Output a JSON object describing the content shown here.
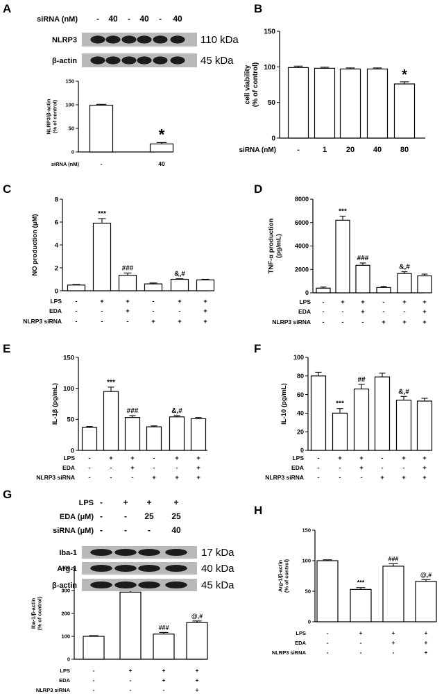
{
  "panels": [
    {
      "id": "A",
      "letter": "A",
      "type": "western_blot",
      "blot": {
        "cond_label": "siRNA (nM)",
        "cond_values": [
          "-",
          "40",
          "-",
          "40",
          "-",
          "40"
        ],
        "bands": [
          {
            "label": "NLRP3",
            "size": "110 kDa"
          },
          {
            "label": "β-actin",
            "size": "45 kDa"
          }
        ]
      },
      "chart_data": {
        "type": "bar",
        "categories": [
          "-",
          "40"
        ],
        "values": [
          99,
          17
        ],
        "errors": [
          2,
          3
        ],
        "ylabel": [
          "NLRP3/β-actin",
          "(% of control)"
        ],
        "ylim": [
          0,
          150
        ],
        "yticks": [
          "0",
          "50",
          "100",
          "150"
        ],
        "annotations": [
          "",
          "*"
        ],
        "condition_rows": [
          {
            "label": "siRNA (nM)",
            "values": [
              "-",
              "40"
            ]
          }
        ]
      }
    },
    {
      "id": "B",
      "letter": "B",
      "type": "bar",
      "chart_data": {
        "type": "bar",
        "categories": [
          "-",
          "1",
          "20",
          "40",
          "80"
        ],
        "values": [
          99,
          98,
          97,
          97,
          76
        ],
        "errors": [
          2,
          1.5,
          1.5,
          1.5,
          3
        ],
        "ylabel": [
          "cell viability",
          "(% of control)"
        ],
        "ylim": [
          0,
          150
        ],
        "yticks": [
          "0",
          "50",
          "100",
          "150"
        ],
        "annotations": [
          "",
          "",
          "",
          "",
          "*"
        ],
        "condition_rows": [
          {
            "label": "siRNA (nM)",
            "values": [
              "-",
              "1",
              "20",
              "40",
              "80"
            ]
          }
        ]
      }
    },
    {
      "id": "C",
      "letter": "C",
      "type": "bar",
      "chart_data": {
        "type": "bar",
        "categories": [
          "1",
          "2",
          "3",
          "4",
          "5",
          "6"
        ],
        "values": [
          0.5,
          5.9,
          1.35,
          0.6,
          1.0,
          0.95
        ],
        "errors": [
          0.05,
          0.4,
          0.2,
          0.08,
          0.05,
          0.05
        ],
        "ylabel": [
          "NO production (μM)"
        ],
        "ylim": [
          0,
          8
        ],
        "yticks": [
          "0",
          "2",
          "4",
          "6",
          "8"
        ],
        "annotations": [
          "",
          "***",
          "###",
          "",
          "&,#",
          ""
        ],
        "condition_rows": [
          {
            "label": "LPS",
            "values": [
              "-",
              "+",
              "+",
              "-",
              "+",
              "+"
            ]
          },
          {
            "label": "EDA",
            "values": [
              "-",
              "-",
              "+",
              "-",
              "-",
              "+"
            ]
          },
          {
            "label": "NLRP3 siRNA",
            "values": [
              "-",
              "-",
              "-",
              "+",
              "+",
              "+"
            ]
          }
        ]
      }
    },
    {
      "id": "D",
      "letter": "D",
      "type": "bar",
      "chart_data": {
        "type": "bar",
        "categories": [
          "1",
          "2",
          "3",
          "4",
          "5",
          "6"
        ],
        "values": [
          400,
          6200,
          2350,
          450,
          1650,
          1450
        ],
        "errors": [
          100,
          350,
          200,
          100,
          150,
          150
        ],
        "ylabel": [
          "TNF-α production",
          "(pg/mL)"
        ],
        "ylim": [
          0,
          8000
        ],
        "yticks": [
          "0",
          "2000",
          "4000",
          "6000",
          "8000"
        ],
        "annotations": [
          "",
          "***",
          "###",
          "",
          "&,#",
          ""
        ],
        "condition_rows": [
          {
            "label": "LPS",
            "values": [
              "-",
              "+",
              "+",
              "-",
              "+",
              "+"
            ]
          },
          {
            "label": "EDA",
            "values": [
              "-",
              "-",
              "+",
              "-",
              "-",
              "+"
            ]
          },
          {
            "label": "NLRP3 siRNA",
            "values": [
              "-",
              "-",
              "-",
              "+",
              "+",
              "+"
            ]
          }
        ]
      }
    },
    {
      "id": "E",
      "letter": "E",
      "type": "bar",
      "chart_data": {
        "type": "bar",
        "categories": [
          "1",
          "2",
          "3",
          "4",
          "5",
          "6"
        ],
        "values": [
          37,
          95,
          53,
          38,
          54,
          51
        ],
        "errors": [
          1.5,
          7,
          3,
          1.5,
          2,
          2
        ],
        "ylabel": [
          "IL-1β (pg/mL)"
        ],
        "ylim": [
          0,
          150
        ],
        "yticks": [
          "0",
          "50",
          "100",
          "150"
        ],
        "annotations": [
          "",
          "***",
          "###",
          "",
          "&,#",
          ""
        ],
        "condition_rows": [
          {
            "label": "LPS",
            "values": [
              "-",
              "+",
              "+",
              "-",
              "+",
              "+"
            ]
          },
          {
            "label": "EDA",
            "values": [
              "-",
              "-",
              "+",
              "-",
              "-",
              "+"
            ]
          },
          {
            "label": "NLRP3 siRNA",
            "values": [
              "-",
              "-",
              "-",
              "+",
              "+",
              "+"
            ]
          }
        ]
      }
    },
    {
      "id": "F",
      "letter": "F",
      "type": "bar",
      "chart_data": {
        "type": "bar",
        "categories": [
          "1",
          "2",
          "3",
          "4",
          "5",
          "6"
        ],
        "values": [
          80,
          40,
          66,
          79,
          54,
          53
        ],
        "errors": [
          4,
          5,
          5,
          4,
          4,
          3
        ],
        "ylabel": [
          "IL-10 (pg/mL)"
        ],
        "ylim": [
          0,
          100
        ],
        "yticks": [
          "0",
          "20",
          "40",
          "60",
          "80",
          "100"
        ],
        "annotations": [
          "",
          "***",
          "##",
          "",
          "&,#",
          ""
        ],
        "condition_rows": [
          {
            "label": "LPS",
            "values": [
              "-",
              "+",
              "+",
              "-",
              "+",
              "+"
            ]
          },
          {
            "label": "EDA",
            "values": [
              "-",
              "-",
              "+",
              "-",
              "-",
              "+"
            ]
          },
          {
            "label": "NLRP3 siRNA",
            "values": [
              "-",
              "-",
              "-",
              "+",
              "+",
              "+"
            ]
          }
        ]
      }
    },
    {
      "id": "G",
      "letter": "G",
      "type": "western_blot",
      "blot": {
        "cond_rows": [
          {
            "label": "LPS",
            "values": [
              "-",
              "+",
              "+",
              "+"
            ]
          },
          {
            "label": "EDA (μM)",
            "values": [
              "-",
              "-",
              "25",
              "25"
            ]
          },
          {
            "label": "siRNA (μM)",
            "values": [
              "-",
              "-",
              "-",
              "40"
            ]
          }
        ],
        "bands": [
          {
            "label": "Iba-1",
            "size": "17 kDa"
          },
          {
            "label": "Arg-1",
            "size": "40 kDa"
          },
          {
            "label": "β-actin",
            "size": "45 kDa"
          }
        ]
      },
      "chart_data": {
        "type": "bar",
        "categories": [
          "1",
          "2",
          "3",
          "4"
        ],
        "values": [
          100,
          293,
          110,
          160
        ],
        "errors": [
          3,
          10,
          7,
          7
        ],
        "ylabel": [
          "Iba-1/β-actin",
          "(% of control)"
        ],
        "ylim": [
          0,
          400
        ],
        "yticks": [
          "0",
          "100",
          "200",
          "300",
          "400"
        ],
        "annotations": [
          "",
          "***",
          "###",
          "@,#"
        ],
        "condition_rows": [
          {
            "label": "LPS",
            "values": [
              "-",
              "+",
              "+",
              "+"
            ]
          },
          {
            "label": "EDA",
            "values": [
              "-",
              "-",
              "+",
              "+"
            ]
          },
          {
            "label": "NLRP3 siRNA",
            "values": [
              "-",
              "-",
              "-",
              "+"
            ]
          }
        ]
      }
    },
    {
      "id": "H",
      "letter": "H",
      "type": "bar",
      "chart_data": {
        "type": "bar",
        "categories": [
          "1",
          "2",
          "3",
          "4"
        ],
        "values": [
          100,
          53,
          91,
          66
        ],
        "errors": [
          1.5,
          3,
          4,
          3
        ],
        "ylabel": [
          "Arg-1/β-actin",
          "(% of control)"
        ],
        "ylim": [
          0,
          150
        ],
        "yticks": [
          "0",
          "50",
          "100",
          "150"
        ],
        "annotations": [
          "",
          "***",
          "###",
          "@,#"
        ],
        "condition_rows": [
          {
            "label": "LPS",
            "values": [
              "-",
              "+",
              "+",
              "+"
            ]
          },
          {
            "label": "EDA",
            "values": [
              "-",
              "-",
              "+",
              "+"
            ]
          },
          {
            "label": "NLRP3 siRNA",
            "values": [
              "-",
              "-",
              "-",
              "+"
            ]
          }
        ]
      }
    }
  ]
}
